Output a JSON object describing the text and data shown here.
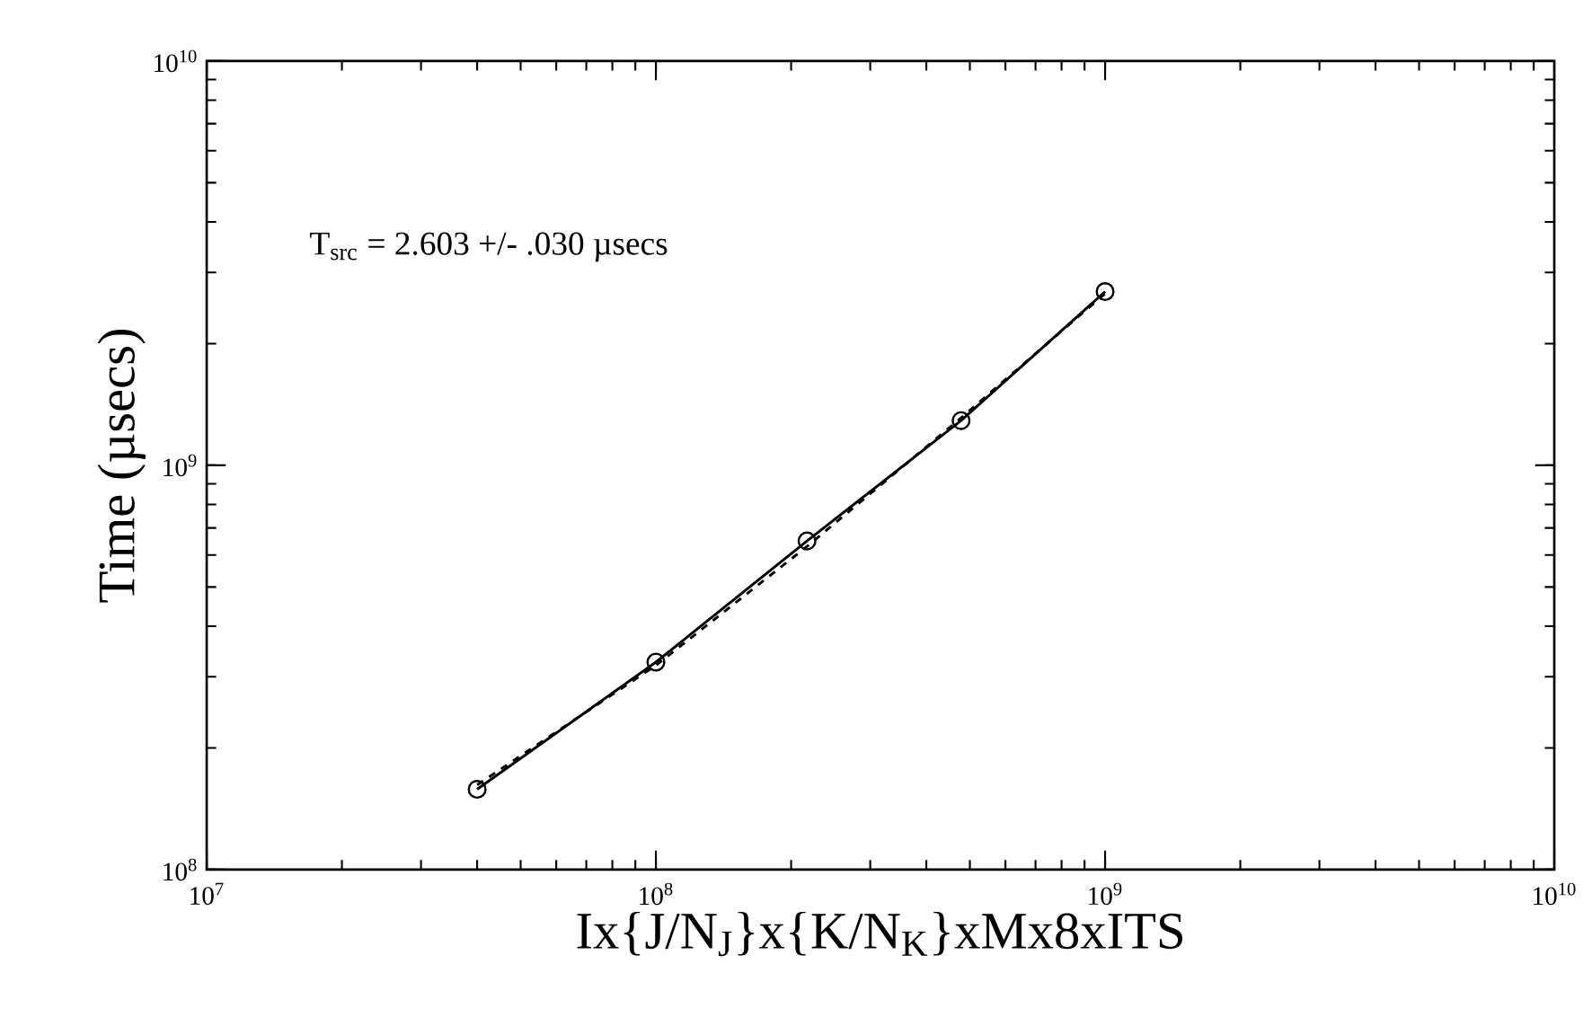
{
  "chart_data": {
    "type": "line",
    "log": "xy",
    "grid": false,
    "xlabel": "Ix{J/N$_{J}$}x{K/N$_{K}$}xMx8xITS",
    "ylabel": "Time (µsecs)",
    "annotations": [
      "T$_{src}$ = 2.603 +/- .030 µsecs"
    ],
    "xlim": [
      10000000,
      10000000000
    ],
    "ylim": [
      100000000,
      10000000000
    ],
    "xticks": [
      {
        "value": 10000000,
        "label": "10$^{7}$"
      },
      {
        "value": 100000000,
        "label": "10$^{8}$"
      },
      {
        "value": 1000000000,
        "label": "10$^{9}$"
      },
      {
        "value": 10000000000,
        "label": "10$^{10}$"
      }
    ],
    "yticks": [
      {
        "value": 100000000,
        "label": "10$^{8}$"
      },
      {
        "value": 1000000000,
        "label": "10$^{9}$"
      },
      {
        "value": 10000000000,
        "label": "10$^{10}$"
      }
    ],
    "series": [
      {
        "color": "#000000",
        "marker": "circle",
        "line_style": "solid",
        "x": [
          40000000,
          100000000,
          217000000,
          478000000,
          1000000000
        ],
        "values": [
          158000000,
          326000000,
          650000000,
          1290000000,
          2690000000
        ]
      },
      {
        "color": "#000000",
        "marker": "none",
        "line_style": "dashed",
        "x": [
          40000000,
          100000000,
          217000000,
          478000000,
          1000000000
        ],
        "values": [
          162000000,
          320000000,
          630000000,
          1310000000,
          2660000000
        ]
      }
    ]
  }
}
